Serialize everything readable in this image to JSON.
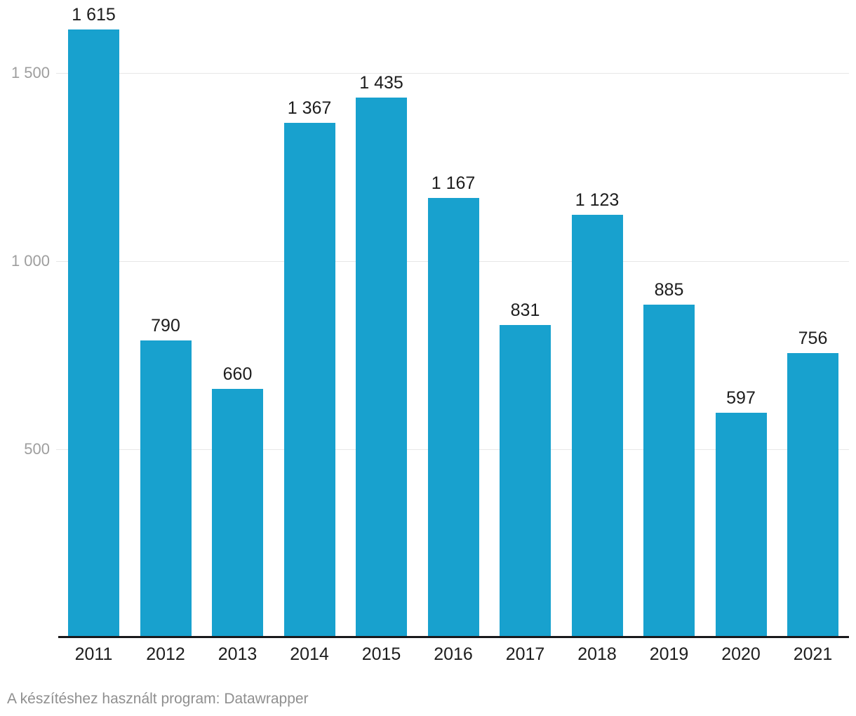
{
  "chart_data": {
    "type": "bar",
    "categories": [
      "2011",
      "2012",
      "2013",
      "2014",
      "2015",
      "2016",
      "2017",
      "2018",
      "2019",
      "2020",
      "2021"
    ],
    "values": [
      1615,
      790,
      660,
      1367,
      1435,
      1167,
      831,
      1123,
      885,
      597,
      756
    ],
    "value_labels": [
      "1 615",
      "790",
      "660",
      "1 367",
      "1 435",
      "1 167",
      "831",
      "1 123",
      "885",
      "597",
      "756"
    ],
    "title": "",
    "xlabel": "",
    "ylabel": "",
    "ylim": [
      0,
      1694
    ],
    "yticks": [
      500,
      1000,
      1500
    ],
    "ytick_labels": [
      "500",
      "1 000",
      "1 500"
    ],
    "grid": "horizontal",
    "legend": "none"
  },
  "colors": {
    "bar": "#18a1ce",
    "grid": "#e7e7e7",
    "ytick_text": "#9e9e9e",
    "value_text": "#1d1d1d",
    "xtick_text": "#1d1d1d",
    "baseline": "#19191b",
    "footer_text": "#8f8f8f",
    "background": "#ffffff"
  },
  "footer": {
    "attribution": "A készítéshez használt program: Datawrapper"
  }
}
